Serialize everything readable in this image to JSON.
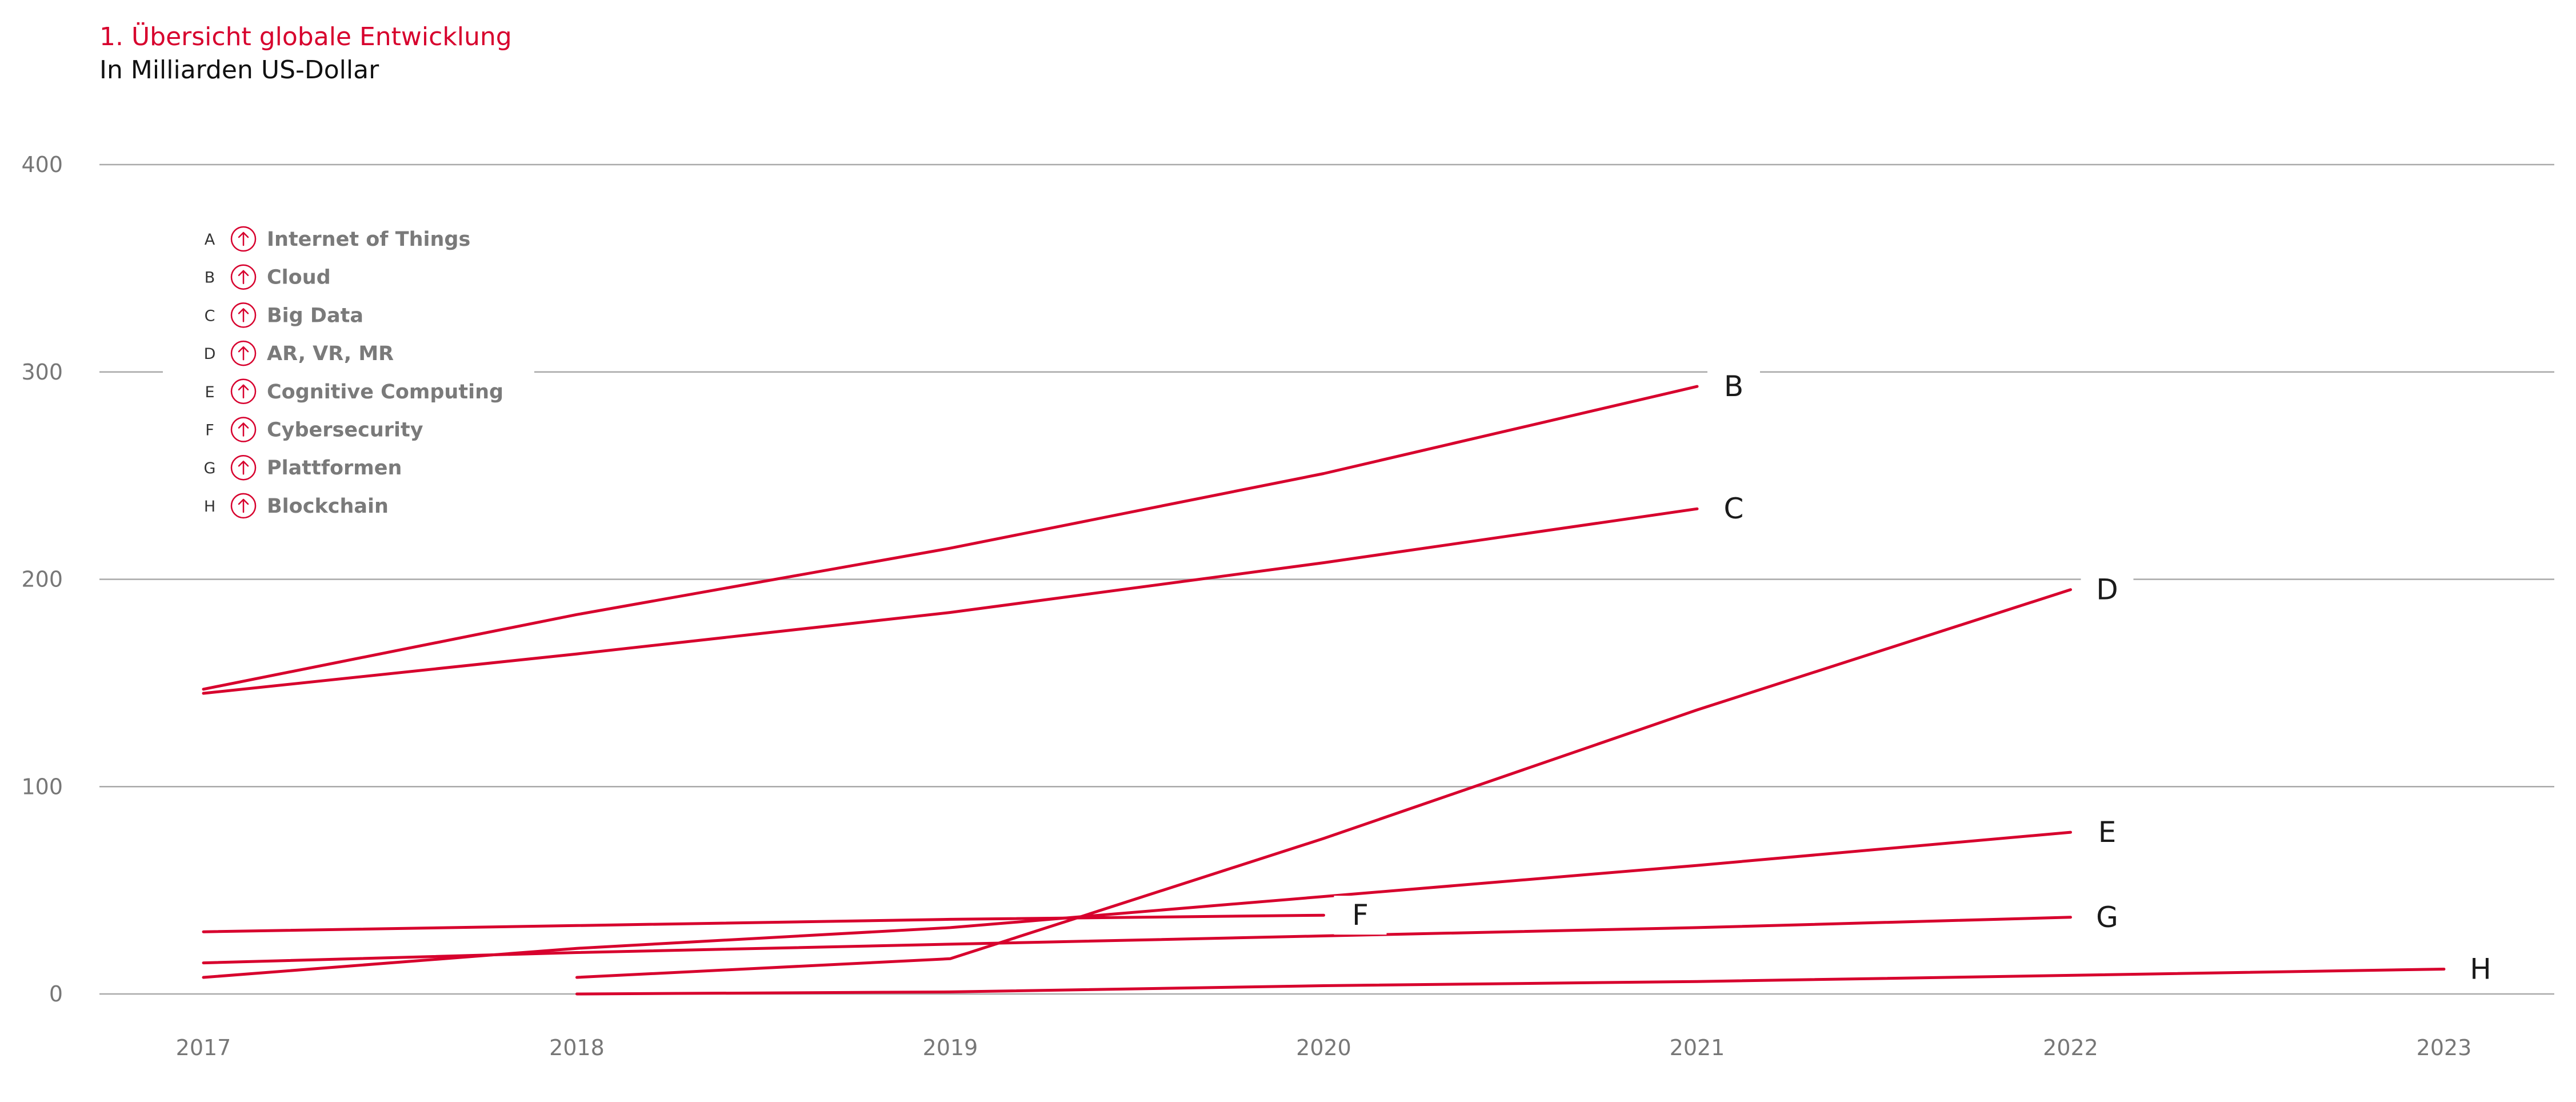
{
  "header": {
    "title": "1. Übersicht globale Entwicklung",
    "subtitle": "In Milliarden US-Dollar"
  },
  "colors": {
    "accent": "#d7002d",
    "grid": "#a9a9a9",
    "axis_text": "#777777"
  },
  "legend": {
    "icon": "arrow-up-circle-icon",
    "items": [
      {
        "letter": "A",
        "label": "Internet of Things"
      },
      {
        "letter": "B",
        "label": "Cloud"
      },
      {
        "letter": "C",
        "label": "Big Data"
      },
      {
        "letter": "D",
        "label": "AR, VR, MR"
      },
      {
        "letter": "E",
        "label": "Cognitive Computing"
      },
      {
        "letter": "F",
        "label": "Cybersecurity"
      },
      {
        "letter": "G",
        "label": "Plattformen"
      },
      {
        "letter": "H",
        "label": "Blockchain"
      }
    ]
  },
  "chart_data": {
    "type": "line",
    "title": "1. Übersicht globale Entwicklung",
    "subtitle": "In Milliarden US-Dollar",
    "xlabel": "",
    "ylabel": "",
    "x": [
      "2017",
      "2018",
      "2019",
      "2020",
      "2021",
      "2022",
      "2023"
    ],
    "xlim": [
      2017,
      2023
    ],
    "ylim": [
      0,
      400
    ],
    "yticks": [
      0,
      100,
      200,
      300,
      400
    ],
    "grid": "horizontal",
    "legend_position": "top-left",
    "series": [
      {
        "name": "B",
        "points": [
          [
            2017,
            147
          ],
          [
            2018,
            183
          ],
          [
            2019,
            215
          ],
          [
            2020,
            251
          ],
          [
            2021,
            293
          ]
        ]
      },
      {
        "name": "C",
        "points": [
          [
            2017,
            145
          ],
          [
            2018,
            164
          ],
          [
            2019,
            184
          ],
          [
            2020,
            208
          ],
          [
            2021,
            234
          ]
        ]
      },
      {
        "name": "D",
        "points": [
          [
            2018,
            8
          ],
          [
            2019,
            17
          ],
          [
            2020,
            75
          ],
          [
            2021,
            137
          ],
          [
            2022,
            195
          ]
        ]
      },
      {
        "name": "E",
        "points": [
          [
            2017,
            8
          ],
          [
            2018,
            22
          ],
          [
            2019,
            32
          ],
          [
            2020,
            47
          ],
          [
            2021,
            62
          ],
          [
            2022,
            78
          ]
        ]
      },
      {
        "name": "F",
        "points": [
          [
            2017,
            30
          ],
          [
            2018,
            33
          ],
          [
            2019,
            36
          ],
          [
            2020,
            38
          ]
        ]
      },
      {
        "name": "G",
        "points": [
          [
            2017,
            15
          ],
          [
            2018,
            20
          ],
          [
            2019,
            24
          ],
          [
            2020,
            28
          ],
          [
            2021,
            32
          ],
          [
            2022,
            37
          ]
        ]
      },
      {
        "name": "H",
        "points": [
          [
            2018,
            0
          ],
          [
            2019,
            1
          ],
          [
            2020,
            4
          ],
          [
            2021,
            6
          ],
          [
            2022,
            9
          ],
          [
            2023,
            12
          ]
        ]
      }
    ]
  }
}
